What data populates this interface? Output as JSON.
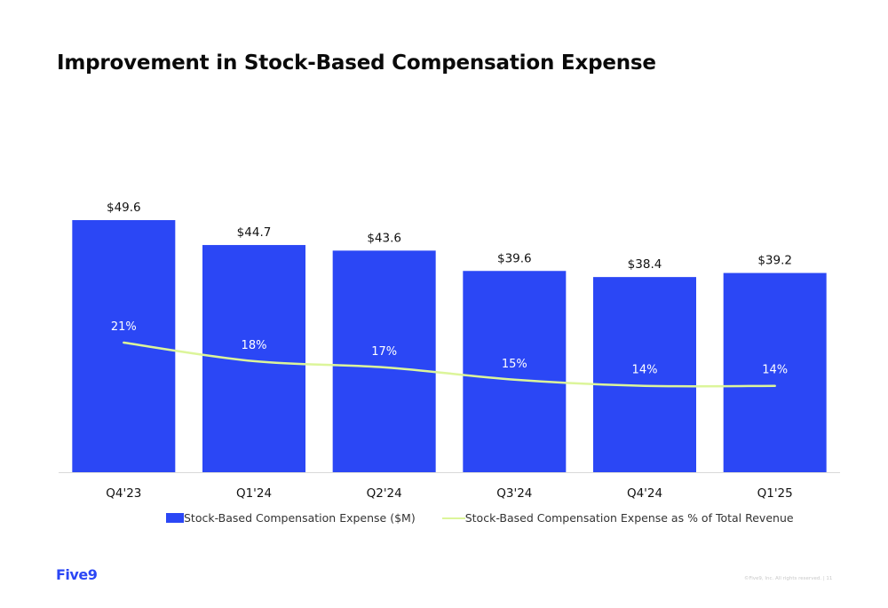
{
  "title": "Improvement in Stock-Based Compensation Expense",
  "logo": "Five9",
  "footer": "©Five9, Inc. All rights reserved. | 11",
  "colors": {
    "bar": "#2b47f5",
    "line": "#dcf59a"
  },
  "chart_data": {
    "type": "bar",
    "categories": [
      "Q4'23",
      "Q1'24",
      "Q2'24",
      "Q3'24",
      "Q4'24",
      "Q1'25"
    ],
    "series": [
      {
        "name": "Stock-Based Compensation Expense ($M)",
        "type": "bar",
        "values": [
          49.6,
          44.7,
          43.6,
          39.6,
          38.4,
          39.2
        ],
        "labels": [
          "$49.6",
          "$44.7",
          "$43.6",
          "$39.6",
          "$38.4",
          "$39.2"
        ]
      },
      {
        "name": "Stock-Based Compensation Expense as % of Total Revenue",
        "type": "line",
        "values": [
          21,
          18,
          17,
          15,
          14,
          14
        ],
        "labels": [
          "21%",
          "18%",
          "17%",
          "15%",
          "14%",
          "14%"
        ]
      }
    ],
    "ylim_bar": [
      0,
      49.6
    ],
    "ylim_line": [
      0,
      35
    ],
    "grid": false,
    "legend": "bottom"
  }
}
